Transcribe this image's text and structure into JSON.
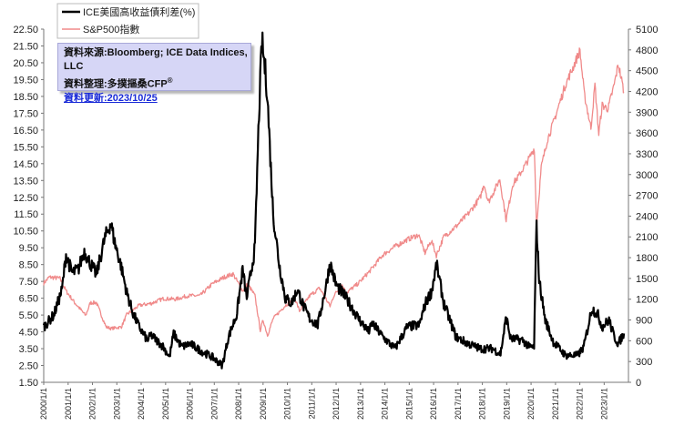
{
  "info_box": {
    "source": "資料來源:Bloomberg; ICE Data Indices, LLC",
    "compiled": "資料整理:多撲摳桑CFP",
    "compiled_sup": "®",
    "updated": "資料更新:2023/10/25"
  },
  "chart_data": {
    "type": "line",
    "series": [
      {
        "name": "ICE美國高收益債利差(%)",
        "axis": "left",
        "color": "#000000",
        "points": [
          [
            "2000/1/1",
            4.8
          ],
          [
            "2000/6/1",
            5.5
          ],
          [
            "2000/10/1",
            7.0
          ],
          [
            "2000/12/1",
            9.1
          ],
          [
            "2001/3/1",
            8.0
          ],
          [
            "2001/6/1",
            8.2
          ],
          [
            "2001/9/1",
            9.3
          ],
          [
            "2001/11/1",
            8.8
          ],
          [
            "2002/3/1",
            7.9
          ],
          [
            "2002/7/1",
            10.0
          ],
          [
            "2002/10/1",
            11.0
          ],
          [
            "2002/12/1",
            9.8
          ],
          [
            "2003/3/1",
            8.5
          ],
          [
            "2003/6/1",
            6.8
          ],
          [
            "2003/9/1",
            5.6
          ],
          [
            "2003/12/1",
            4.8
          ],
          [
            "2004/4/1",
            4.0
          ],
          [
            "2004/6/1",
            4.3
          ],
          [
            "2004/12/1",
            3.6
          ],
          [
            "2005/3/1",
            3.0
          ],
          [
            "2005/5/1",
            4.4
          ],
          [
            "2005/9/1",
            3.6
          ],
          [
            "2006/1/1",
            3.8
          ],
          [
            "2006/6/1",
            3.4
          ],
          [
            "2006/12/1",
            3.0
          ],
          [
            "2007/5/1",
            2.5
          ],
          [
            "2007/8/1",
            4.2
          ],
          [
            "2007/12/1",
            5.5
          ],
          [
            "2008/3/1",
            8.2
          ],
          [
            "2008/5/1",
            6.5
          ],
          [
            "2008/9/1",
            9.5
          ],
          [
            "2008/11/1",
            17.5
          ],
          [
            "2008/12/15",
            21.8
          ],
          [
            "2009/3/1",
            19.0
          ],
          [
            "2009/6/1",
            11.5
          ],
          [
            "2009/9/1",
            8.5
          ],
          [
            "2009/12/1",
            6.5
          ],
          [
            "2010/3/1",
            6.2
          ],
          [
            "2010/6/1",
            7.0
          ],
          [
            "2010/9/1",
            6.0
          ],
          [
            "2010/12/1",
            5.3
          ],
          [
            "2011/4/1",
            4.9
          ],
          [
            "2011/8/1",
            7.2
          ],
          [
            "2011/10/1",
            8.6
          ],
          [
            "2012/1/1",
            7.3
          ],
          [
            "2012/6/1",
            6.5
          ],
          [
            "2012/12/1",
            5.3
          ],
          [
            "2013/5/1",
            4.5
          ],
          [
            "2013/7/1",
            5.0
          ],
          [
            "2013/12/1",
            4.2
          ],
          [
            "2014/6/1",
            3.5
          ],
          [
            "2014/12/1",
            4.8
          ],
          [
            "2015/6/1",
            4.9
          ],
          [
            "2015/9/1",
            6.2
          ],
          [
            "2015/12/1",
            6.9
          ],
          [
            "2016/2/15",
            8.5
          ],
          [
            "2016/6/1",
            6.2
          ],
          [
            "2016/12/1",
            4.2
          ],
          [
            "2017/6/1",
            3.8
          ],
          [
            "2017/12/1",
            3.5
          ],
          [
            "2018/6/1",
            3.5
          ],
          [
            "2018/10/1",
            3.2
          ],
          [
            "2018/12/25",
            5.4
          ],
          [
            "2019/3/1",
            4.1
          ],
          [
            "2019/9/1",
            4.0
          ],
          [
            "2019/12/1",
            3.6
          ],
          [
            "2020/2/15",
            3.6
          ],
          [
            "2020/3/23",
            10.9
          ],
          [
            "2020/5/1",
            7.6
          ],
          [
            "2020/8/1",
            5.2
          ],
          [
            "2020/12/1",
            3.9
          ],
          [
            "2021/6/1",
            3.1
          ],
          [
            "2021/12/1",
            3.1
          ],
          [
            "2022/3/1",
            3.6
          ],
          [
            "2022/7/1",
            5.9
          ],
          [
            "2022/10/1",
            5.5
          ],
          [
            "2022/12/1",
            4.8
          ],
          [
            "2023/3/15",
            5.2
          ],
          [
            "2023/6/1",
            4.2
          ],
          [
            "2023/8/1",
            3.8
          ],
          [
            "2023/10/25",
            4.4
          ]
        ]
      },
      {
        "name": "S&P500指數",
        "axis": "right",
        "color": "#f08a8a",
        "points": [
          [
            "2000/1/1",
            1430
          ],
          [
            "2000/3/24",
            1520
          ],
          [
            "2000/9/1",
            1500
          ],
          [
            "2000/12/1",
            1320
          ],
          [
            "2001/4/1",
            1160
          ],
          [
            "2001/9/21",
            965
          ],
          [
            "2001/12/1",
            1150
          ],
          [
            "2002/3/1",
            1150
          ],
          [
            "2002/7/23",
            800
          ],
          [
            "2002/10/9",
            777
          ],
          [
            "2003/3/11",
            800
          ],
          [
            "2003/6/1",
            980
          ],
          [
            "2003/12/1",
            1110
          ],
          [
            "2004/6/1",
            1140
          ],
          [
            "2004/12/1",
            1210
          ],
          [
            "2005/6/1",
            1200
          ],
          [
            "2005/12/1",
            1250
          ],
          [
            "2006/6/1",
            1250
          ],
          [
            "2006/12/1",
            1420
          ],
          [
            "2007/6/1",
            1520
          ],
          [
            "2007/10/9",
            1565
          ],
          [
            "2008/3/1",
            1320
          ],
          [
            "2008/5/15",
            1420
          ],
          [
            "2008/9/1",
            1250
          ],
          [
            "2008/11/20",
            750
          ],
          [
            "2009/1/1",
            900
          ],
          [
            "2009/3/9",
            677
          ],
          [
            "2009/6/1",
            920
          ],
          [
            "2009/12/1",
            1110
          ],
          [
            "2010/4/23",
            1215
          ],
          [
            "2010/7/1",
            1030
          ],
          [
            "2010/12/1",
            1250
          ],
          [
            "2011/4/29",
            1360
          ],
          [
            "2011/10/3",
            1100
          ],
          [
            "2011/12/1",
            1260
          ],
          [
            "2012/4/1",
            1400
          ],
          [
            "2012/6/1",
            1290
          ],
          [
            "2012/12/1",
            1430
          ],
          [
            "2013/6/1",
            1620
          ],
          [
            "2013/12/1",
            1840
          ],
          [
            "2014/6/1",
            1960
          ],
          [
            "2014/12/1",
            2060
          ],
          [
            "2015/5/21",
            2130
          ],
          [
            "2015/8/25",
            1870
          ],
          [
            "2015/12/1",
            2050
          ],
          [
            "2016/2/11",
            1830
          ],
          [
            "2016/6/1",
            2100
          ],
          [
            "2016/12/1",
            2250
          ],
          [
            "2017/6/1",
            2430
          ],
          [
            "2017/12/1",
            2670
          ],
          [
            "2018/1/26",
            2870
          ],
          [
            "2018/4/1",
            2600
          ],
          [
            "2018/9/20",
            2930
          ],
          [
            "2018/12/24",
            2350
          ],
          [
            "2019/4/1",
            2860
          ],
          [
            "2019/7/1",
            2980
          ],
          [
            "2019/12/1",
            3230
          ],
          [
            "2020/2/19",
            3380
          ],
          [
            "2020/3/23",
            2240
          ],
          [
            "2020/6/1",
            3100
          ],
          [
            "2020/9/1",
            3500
          ],
          [
            "2020/12/1",
            3750
          ],
          [
            "2021/6/1",
            4300
          ],
          [
            "2021/9/1",
            4500
          ],
          [
            "2022/1/3",
            4790
          ],
          [
            "2022/3/8",
            4170
          ],
          [
            "2022/6/16",
            3670
          ],
          [
            "2022/8/16",
            4300
          ],
          [
            "2022/10/12",
            3580
          ],
          [
            "2022/12/1",
            4000
          ],
          [
            "2023/3/1",
            3950
          ],
          [
            "2023/6/1",
            4300
          ],
          [
            "2023/7/31",
            4590
          ],
          [
            "2023/9/1",
            4450
          ],
          [
            "2023/10/25",
            4190
          ]
        ]
      }
    ],
    "y_left": {
      "min": 1.5,
      "max": 22.5,
      "ticks": [
        "22.50",
        "21.50",
        "20.50",
        "19.50",
        "18.50",
        "17.50",
        "16.50",
        "15.50",
        "14.50",
        "13.50",
        "12.50",
        "11.50",
        "10.50",
        "9.50",
        "8.50",
        "7.50",
        "6.50",
        "5.50",
        "4.50",
        "3.50",
        "2.50",
        "1.50"
      ]
    },
    "y_right": {
      "min": 0,
      "max": 5100,
      "ticks": [
        "5100",
        "4800",
        "4500",
        "4200",
        "3900",
        "3600",
        "3300",
        "3000",
        "2700",
        "2400",
        "2100",
        "1800",
        "1500",
        "1200",
        "900",
        "600",
        "300",
        "0"
      ]
    },
    "x_range": [
      "2000/1/1",
      "2023/12/31"
    ],
    "x_ticks": [
      "2000/1/1",
      "2001/1/1",
      "2002/1/1",
      "2003/1/1",
      "2004/1/1",
      "2005/1/1",
      "2006/1/1",
      "2007/1/1",
      "2008/1/1",
      "2009/1/1",
      "2010/1/1",
      "2011/1/1",
      "2012/1/1",
      "2013/1/1",
      "2014/1/1",
      "2015/1/1",
      "2016/1/1",
      "2017/1/1",
      "2018/1/1",
      "2019/1/1",
      "2020/1/1",
      "2021/1/1",
      "2022/1/1",
      "2023/1/1"
    ],
    "legend_position": "top-left",
    "grid": false
  }
}
